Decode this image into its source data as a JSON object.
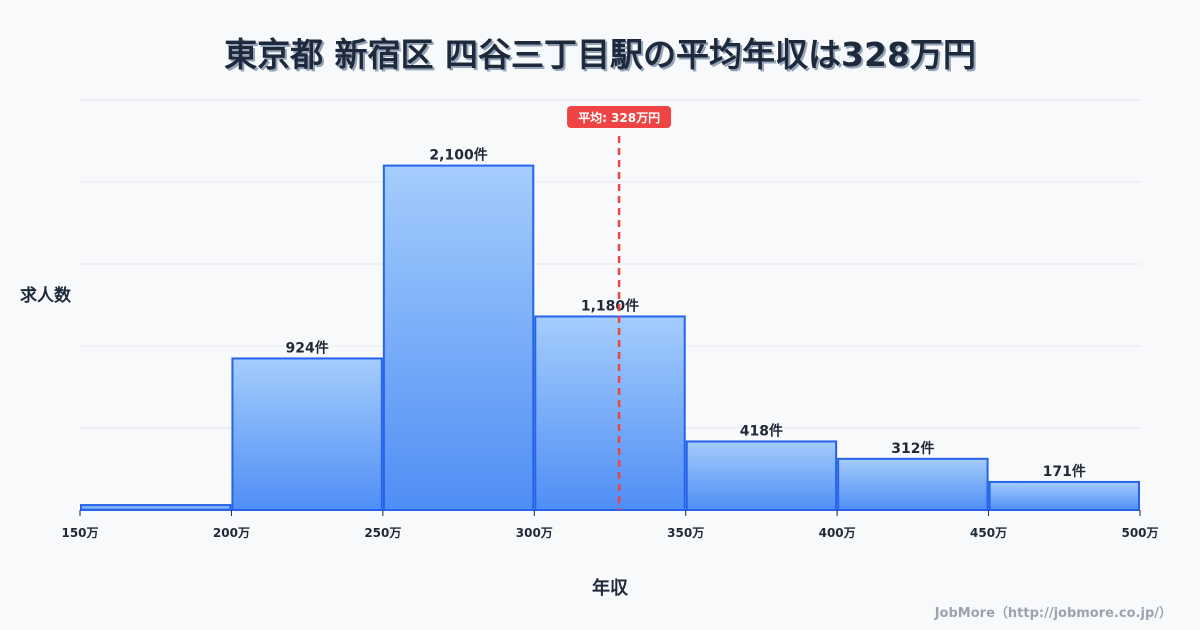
{
  "title": "東京都 新宿区 四谷三丁目駅の平均年収は328万円",
  "axis": {
    "ylabel": "求人数",
    "xlabel": "年収"
  },
  "average": {
    "label": "平均: 328万円",
    "value": 328
  },
  "credit": "JobMore（http://jobmore.co.jp/）",
  "colors": {
    "bar_top": "#a5cdfc",
    "bar_bottom": "#4f8ef5",
    "bar_border": "#2563eb",
    "average_line": "#ef4444",
    "grid": "#e5e7eb",
    "title": "#1e293b"
  },
  "chart_data": {
    "type": "bar",
    "title": "東京都 新宿区 四谷三丁目駅の平均年収は328万円",
    "xlabel": "年収",
    "ylabel": "求人数",
    "bins": [
      {
        "from": 150,
        "to": 200,
        "value": 30,
        "label": ""
      },
      {
        "from": 200,
        "to": 250,
        "value": 924,
        "label": "924件"
      },
      {
        "from": 250,
        "to": 300,
        "value": 2100,
        "label": "2,100件"
      },
      {
        "from": 300,
        "to": 350,
        "value": 1180,
        "label": "1,180件"
      },
      {
        "from": 350,
        "to": 400,
        "value": 418,
        "label": "418件"
      },
      {
        "from": 400,
        "to": 450,
        "value": 312,
        "label": "312件"
      },
      {
        "from": 450,
        "to": 500,
        "value": 171,
        "label": "171件"
      }
    ],
    "x_ticks": [
      "150万",
      "200万",
      "250万",
      "300万",
      "350万",
      "400万",
      "450万",
      "500万"
    ],
    "xlim": [
      150,
      500
    ],
    "ylim": [
      0,
      2500
    ],
    "grid": true,
    "y_ticks_shown": false,
    "annotations": [
      {
        "type": "vline",
        "x": 328,
        "label": "平均: 328万円",
        "style": "dashed"
      }
    ]
  }
}
